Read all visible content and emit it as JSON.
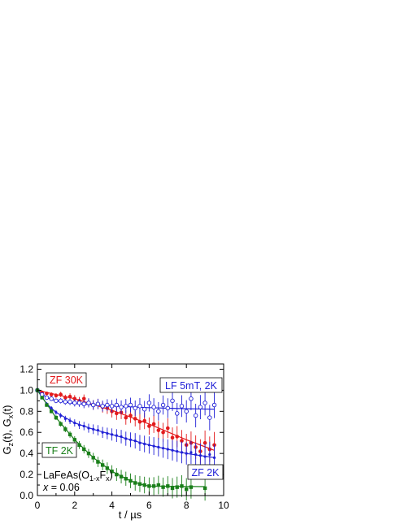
{
  "chart_data": {
    "type": "scatter",
    "title": "",
    "xlabel": "t / µs",
    "ylabel": {
      "prefix": "G",
      "sub1": "z",
      "mid": "(t), G",
      "sub2": "x",
      "suffix": "(t)"
    },
    "xlim": [
      0,
      10
    ],
    "ylim": [
      0,
      1.25
    ],
    "xticks": [
      "0",
      "2",
      "4",
      "6",
      "8",
      "10"
    ],
    "yticks": [
      "0.0",
      "0.2",
      "0.4",
      "0.6",
      "0.8",
      "1.0",
      "1.2"
    ],
    "grid": false,
    "sample": {
      "line1_a": "LaFeAs(O",
      "line1_sub": "1-x",
      "line1_b": "F",
      "line1_sub2": "x",
      "line1_c": ")",
      "line2_var": "x",
      "line2_val": " = 0.06"
    },
    "series": [
      {
        "name": "ZF 30K",
        "color": "#e31a1c",
        "marker": "filled-circle",
        "x": [
          0.0,
          0.25,
          0.5,
          0.75,
          1.0,
          1.25,
          1.5,
          1.75,
          2.0,
          2.25,
          2.5,
          2.75,
          3.0,
          3.25,
          3.5,
          3.75,
          4.0,
          4.25,
          4.5,
          4.75,
          5.0,
          5.25,
          5.5,
          5.75,
          6.0,
          6.25,
          6.5,
          6.75,
          7.0,
          7.25,
          7.5,
          7.75,
          8.0,
          8.25,
          8.5,
          8.75,
          9.0,
          9.25,
          9.5
        ],
        "y": [
          1.0,
          0.98,
          0.97,
          0.96,
          0.95,
          0.96,
          0.93,
          0.94,
          0.92,
          0.9,
          0.92,
          0.88,
          0.86,
          0.87,
          0.84,
          0.83,
          0.8,
          0.78,
          0.79,
          0.74,
          0.76,
          0.73,
          0.7,
          0.71,
          0.66,
          0.68,
          0.62,
          0.6,
          0.64,
          0.55,
          0.56,
          0.52,
          0.48,
          0.5,
          0.46,
          0.42,
          0.5,
          0.44,
          0.48
        ],
        "fit": [
          [
            0,
            1.0
          ],
          [
            2,
            0.92
          ],
          [
            4,
            0.81
          ],
          [
            6,
            0.68
          ],
          [
            8,
            0.53
          ],
          [
            9.5,
            0.43
          ]
        ]
      },
      {
        "name": "LF 5mT, 2K",
        "color": "#1f1fd6",
        "marker": "open-circle",
        "x": [
          0.0,
          0.25,
          0.5,
          0.75,
          1.0,
          1.25,
          1.5,
          1.75,
          2.0,
          2.25,
          2.5,
          2.75,
          3.0,
          3.25,
          3.5,
          3.75,
          4.0,
          4.25,
          4.5,
          4.75,
          5.0,
          5.25,
          5.5,
          5.75,
          6.0,
          6.25,
          6.5,
          6.75,
          7.0,
          7.25,
          7.5,
          7.75,
          8.0,
          8.25,
          8.5,
          8.75,
          9.0,
          9.25,
          9.5
        ],
        "y": [
          1.0,
          0.96,
          0.93,
          0.92,
          0.9,
          0.9,
          0.89,
          0.89,
          0.88,
          0.88,
          0.87,
          0.88,
          0.86,
          0.87,
          0.85,
          0.86,
          0.85,
          0.86,
          0.84,
          0.85,
          0.86,
          0.83,
          0.85,
          0.82,
          0.88,
          0.84,
          0.8,
          0.86,
          0.83,
          0.9,
          0.78,
          0.85,
          0.8,
          0.92,
          0.76,
          0.84,
          0.88,
          0.74,
          0.86
        ],
        "fit": [
          [
            0,
            1.0
          ],
          [
            0.5,
            0.93
          ],
          [
            1,
            0.9
          ],
          [
            2,
            0.875
          ],
          [
            4,
            0.85
          ],
          [
            6,
            0.835
          ],
          [
            8,
            0.825
          ],
          [
            9.5,
            0.82
          ]
        ]
      },
      {
        "name": "ZF 2K",
        "color": "#1f1fd6",
        "marker": "small-filled",
        "x": [
          0.0,
          0.25,
          0.5,
          0.75,
          1.0,
          1.25,
          1.5,
          1.75,
          2.0,
          2.25,
          2.5,
          2.75,
          3.0,
          3.25,
          3.5,
          3.75,
          4.0,
          4.25,
          4.5,
          4.75,
          5.0,
          5.25,
          5.5,
          5.75,
          6.0,
          6.25,
          6.5,
          6.75,
          7.0,
          7.25,
          7.5,
          7.75,
          8.0,
          8.25,
          8.5,
          8.75,
          9.0,
          9.25,
          9.5
        ],
        "y": [
          1.0,
          0.93,
          0.87,
          0.83,
          0.79,
          0.76,
          0.73,
          0.71,
          0.69,
          0.67,
          0.66,
          0.64,
          0.63,
          0.62,
          0.6,
          0.59,
          0.58,
          0.57,
          0.56,
          0.54,
          0.53,
          0.52,
          0.5,
          0.49,
          0.48,
          0.47,
          0.46,
          0.45,
          0.44,
          0.43,
          0.42,
          0.41,
          0.4,
          0.41,
          0.39,
          0.38,
          0.37,
          0.39,
          0.36
        ],
        "fit": [
          [
            0,
            1.0
          ],
          [
            0.5,
            0.87
          ],
          [
            1,
            0.79
          ],
          [
            2,
            0.69
          ],
          [
            3,
            0.63
          ],
          [
            4,
            0.58
          ],
          [
            5,
            0.53
          ],
          [
            6,
            0.48
          ],
          [
            7,
            0.44
          ],
          [
            8,
            0.4
          ],
          [
            9.5,
            0.36
          ]
        ]
      },
      {
        "name": "TF 2K",
        "color": "#1a7f1a",
        "marker": "filled-square",
        "x": [
          0.0,
          0.25,
          0.5,
          0.75,
          1.0,
          1.25,
          1.5,
          1.75,
          2.0,
          2.25,
          2.5,
          2.75,
          3.0,
          3.25,
          3.5,
          3.75,
          4.0,
          4.25,
          4.5,
          4.75,
          5.0,
          5.25,
          5.5,
          5.75,
          6.0,
          6.25,
          6.5,
          6.75,
          7.0,
          7.25,
          7.5,
          7.75,
          8.0,
          8.25,
          9.0
        ],
        "y": [
          1.0,
          0.93,
          0.86,
          0.8,
          0.74,
          0.68,
          0.63,
          0.58,
          0.53,
          0.48,
          0.44,
          0.4,
          0.36,
          0.32,
          0.29,
          0.26,
          0.23,
          0.2,
          0.18,
          0.16,
          0.14,
          0.12,
          0.11,
          0.1,
          0.09,
          0.09,
          0.1,
          0.08,
          0.09,
          0.07,
          0.08,
          0.09,
          0.06,
          0.08,
          0.07
        ],
        "fit": [
          [
            0,
            1.0
          ],
          [
            1,
            0.74
          ],
          [
            2,
            0.53
          ],
          [
            3,
            0.36
          ],
          [
            4,
            0.23
          ],
          [
            5,
            0.14
          ],
          [
            5.7,
            0.1
          ],
          [
            6,
            0.09
          ],
          [
            9,
            0.085
          ]
        ]
      }
    ]
  }
}
